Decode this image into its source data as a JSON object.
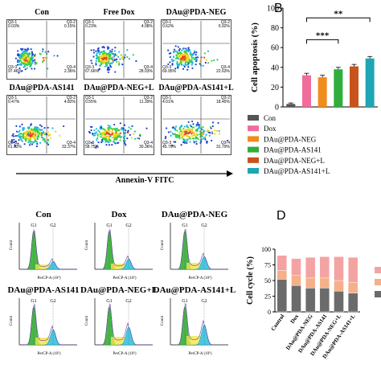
{
  "panel_letters": {
    "B": "B",
    "D": "D"
  },
  "flow": {
    "xlabel": "Annexin-V FITC",
    "plots": [
      {
        "title": "Con",
        "q1": "Q3-1\n0.03%",
        "q2": "Q3-2\n0.15%",
        "q3": "Q3-3\n97.46%",
        "q4": "Q3-4\n2.36%"
      },
      {
        "title": "Free Dox",
        "q1": "Q3-1\n0.23%",
        "q2": "Q3-2\n4.08%",
        "q3": "Q3-3\n67.66%",
        "q4": "Q3-4\n28.03%"
      },
      {
        "title": "DAu@PDA-NEG",
        "q1": "Q3-1\n0.62%",
        "q2": "Q3-2\n6.92%",
        "q3": "Q3-3\n69.95%",
        "q4": "Q3-4\n22.63%"
      },
      {
        "title": "DAu@PDA-AS141",
        "q1": "Q3-1\n0.47%",
        "q2": "Q3-2\n4.82%",
        "q3": "Q3-3\n61.33%",
        "q4": "Q3-4\n33.37%"
      },
      {
        "title": "DAu@PDA-NEG+L",
        "q1": "Q3-1\n0.55%",
        "q2": "Q3-2\n11.39%",
        "q3": "Q3-3\n58.75%",
        "q4": "Q3-4\n30.36%"
      },
      {
        "title": "DAu@PDA-AS141+L",
        "q1": "Q3-1\n4.01%",
        "q2": "Q3-2\n18.45%",
        "q3": "Q3-3\n45.70%",
        "q4": "Q3-4\n31.79%"
      }
    ]
  },
  "cell_cycle": {
    "xlabel": "PerCP-A (10⁵)",
    "ylabel": "Count",
    "peak_labels": [
      "G1",
      "G2"
    ],
    "plots": [
      {
        "title": "Con"
      },
      {
        "title": "Dox"
      },
      {
        "title": "DAu@PDA-NEG"
      },
      {
        "title": "DAu@PDA-AS141"
      },
      {
        "title": "DAu@PDA-NEG+L"
      },
      {
        "title": "DAu@PDA-AS141+L"
      }
    ]
  },
  "chart_data": [
    {
      "type": "bar",
      "ylabel": "Cell apoptosis (%)",
      "ylim": [
        0,
        100
      ],
      "yticks": [
        "0",
        "20",
        "40",
        "60",
        "80",
        "100"
      ],
      "categories": [
        "Con",
        "Dox",
        "DAu@PDA-NEG",
        "DAu@PDA-AS141",
        "DAu@PDA-NEG+L",
        "DAu@PDA-AS141+L"
      ],
      "values": [
        3,
        32,
        30,
        38,
        41,
        49
      ],
      "errors": [
        1,
        2,
        2,
        2,
        2,
        2
      ],
      "colors": [
        "#555555",
        "#f06c9b",
        "#f08c1c",
        "#2fae3c",
        "#c8541c",
        "#1fa6b4"
      ],
      "significance": [
        {
          "label": "***",
          "from": "Dox",
          "to": "DAu@PDA-AS141"
        },
        {
          "label": "**",
          "from": "Dox",
          "to": "DAu@PDA-AS141+L"
        }
      ],
      "legend": [
        "Con",
        "Dox",
        "DAu@PDA-NEG",
        "DAu@PDA-AS141",
        "DAu@PDA-NEG+L",
        "DAu@PDA-AS141+L"
      ],
      "legend_position": "bottom"
    },
    {
      "type": "bar",
      "stacked": true,
      "ylabel": "Cell cycle (%)",
      "ylim": [
        0,
        100
      ],
      "yticks": [
        "0",
        "25",
        "50",
        "75",
        "100"
      ],
      "categories": [
        "Control",
        "Dox",
        "DAu@PDA-NEG",
        "DAu@PDA-AS141",
        "DAu@PDA-NEG+L",
        "DAu@PDA-AS141+L"
      ],
      "series": [
        {
          "values": [
            52,
            42,
            38,
            38,
            33,
            30
          ],
          "color": "#6b6b6b"
        },
        {
          "values": [
            14,
            16,
            16,
            16,
            17,
            17
          ],
          "color": "#f5b08a"
        },
        {
          "values": [
            24,
            27,
            33,
            34,
            38,
            40
          ],
          "color": "#f4a3a3"
        }
      ],
      "legend_position": "right"
    }
  ]
}
